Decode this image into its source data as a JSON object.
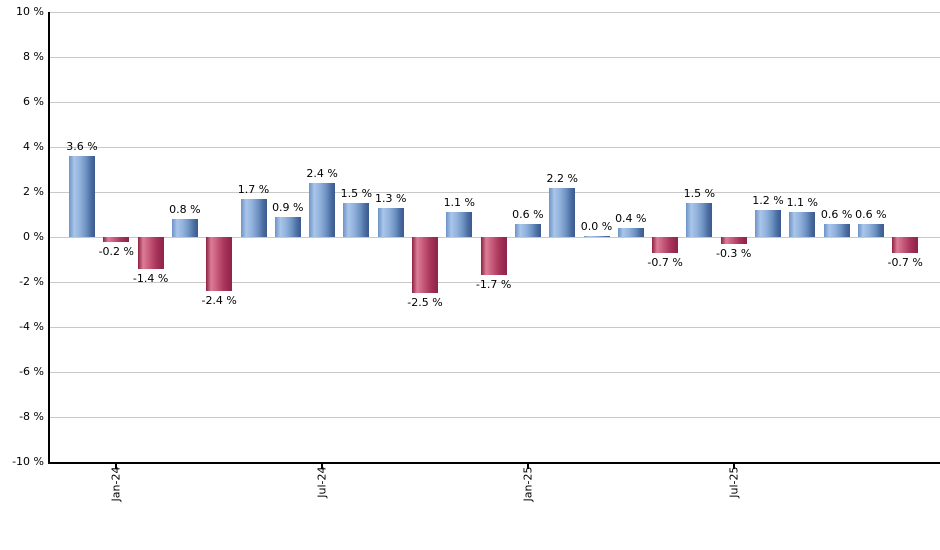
{
  "chart_data": {
    "type": "bar",
    "title": "",
    "unit": "%",
    "values": [
      3.6,
      -0.2,
      -1.4,
      0.8,
      -2.4,
      1.7,
      0.9,
      2.4,
      1.5,
      1.3,
      -2.5,
      1.1,
      -1.7,
      0.6,
      2.2,
      0.0,
      0.4,
      -0.7,
      1.5,
      -0.3,
      1.2,
      1.1,
      0.6,
      0.6,
      -0.7
    ],
    "data_labels": [
      "3.6 %",
      "-0.2 %",
      "-1.4 %",
      "0.8 %",
      "-2.4 %",
      "1.7 %",
      "0.9 %",
      "2.4 %",
      "1.5 %",
      "1.3 %",
      "-2.5 %",
      "1.1 %",
      "-1.7 %",
      "0.6 %",
      "2.2 %",
      "0.0 %",
      "0.4 %",
      "-0.7 %",
      "1.5 %",
      "-0.3 %",
      "1.2 %",
      "1.1 %",
      "0.6 %",
      "0.6 %",
      "-0.7 %"
    ],
    "x_ticks": [
      {
        "label": "Jan-24",
        "index": 1
      },
      {
        "label": "Jul-24",
        "index": 7
      },
      {
        "label": "Jan-25",
        "index": 13
      },
      {
        "label": "Jul-25",
        "index": 19
      }
    ],
    "y_ticks": [
      "10 %",
      "8 %",
      "6 %",
      "4 %",
      "2 %",
      "0 %",
      "-2 %",
      "-4 %",
      "-6 %",
      "-8 %",
      "-10 %"
    ],
    "ylim": [
      -10,
      10
    ],
    "grid_step": 2,
    "grid": true,
    "legend": "none",
    "xlabel": "",
    "ylabel": "",
    "colors": {
      "positive_bar_highlight": "#a9c6ea",
      "positive_bar_dark": "#3b5a8c",
      "negative_bar_highlight": "#db7e97",
      "negative_bar_dark": "#8e2040",
      "gridline": "#c9c9c9",
      "axis": "#000000",
      "background": "#ffffff",
      "label_text": "#000000"
    }
  }
}
